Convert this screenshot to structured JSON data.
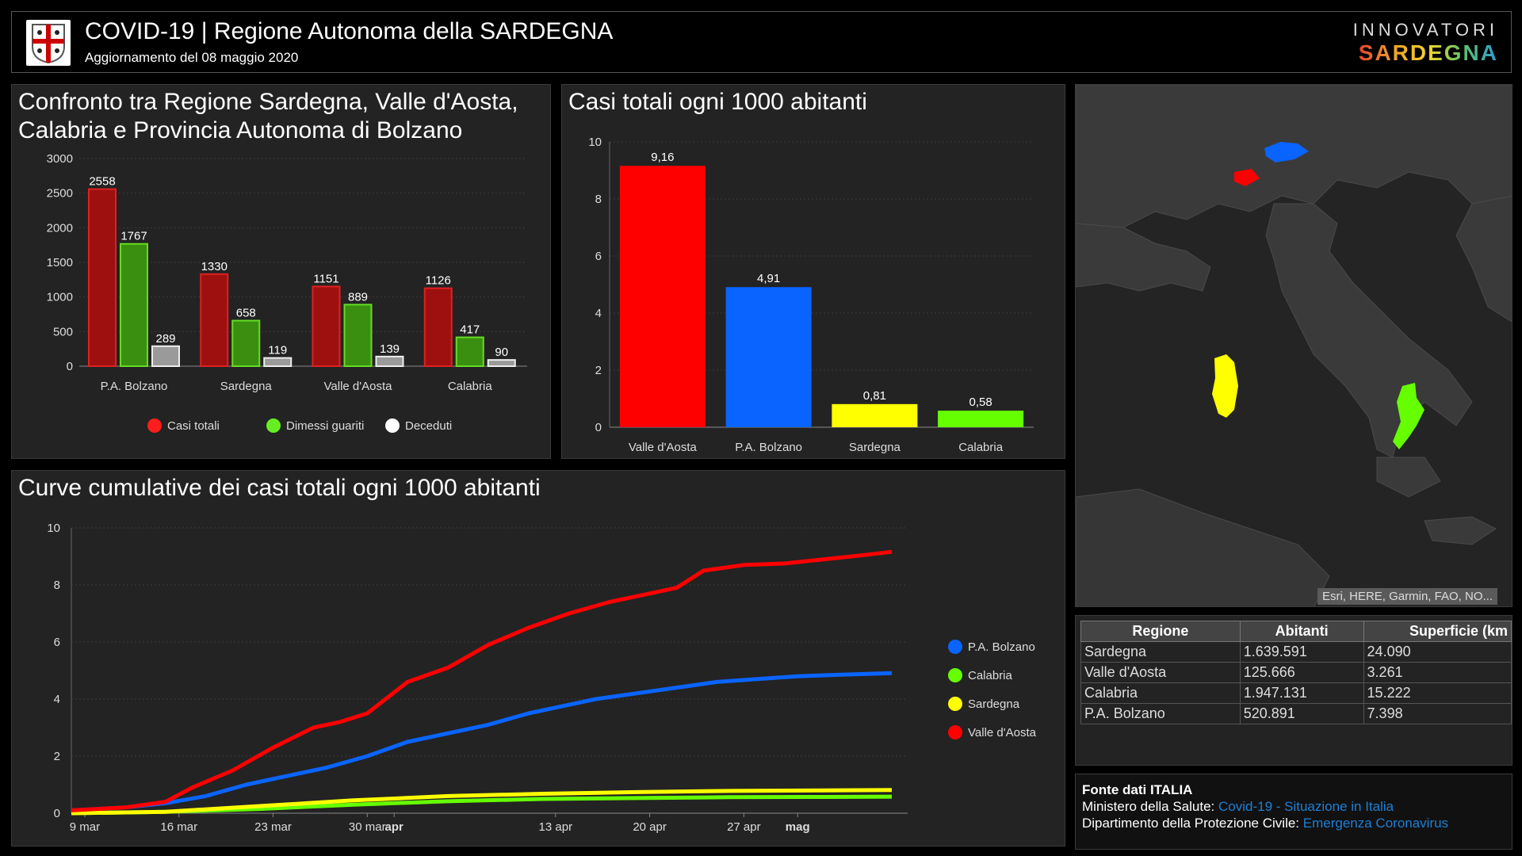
{
  "header": {
    "title": "COVID-19 | Regione Autonoma della SARDEGNA",
    "subtitle": "Aggiornamento del 08 maggio 2020",
    "brand_line1": "INNOVATORI",
    "brand_line2": "SARDEGNA"
  },
  "panels": {
    "compare_title": "Confronto tra Regione Sardegna, Valle d'Aosta, Calabria e Provincia Autonoma di Bolzano",
    "per1000_title": "Casi totali ogni 1000 abitanti",
    "curves_title": "Curve cumulative dei casi totali ogni 1000 abitanti"
  },
  "colors": {
    "casi": "#9e1010",
    "casi_border": "#e02020",
    "dimessi": "#3a8f10",
    "dimessi_border": "#66dd22",
    "deceduti": "#9a9a9a",
    "valle": "#ff0000",
    "bolzano": "#0a64ff",
    "sardegna": "#ffff00",
    "calabria": "#66ff00"
  },
  "chart_data": [
    {
      "type": "bar",
      "title": "Confronto tra Regione Sardegna, Valle d'Aosta, Calabria e Provincia Autonoma di Bolzano",
      "categories": [
        "P.A. Bolzano",
        "Sardegna",
        "Valle d'Aosta",
        "Calabria"
      ],
      "series": [
        {
          "name": "Casi totali",
          "values": [
            2558,
            1330,
            1151,
            1126
          ]
        },
        {
          "name": "Dimessi guariti",
          "values": [
            1767,
            658,
            889,
            417
          ]
        },
        {
          "name": "Deceduti",
          "values": [
            289,
            119,
            139,
            90
          ]
        }
      ],
      "yticks": [
        "0",
        "500",
        "1000",
        "1500",
        "2000",
        "2500",
        "3000"
      ],
      "ylim": [
        0,
        3000
      ],
      "legend": "bottom"
    },
    {
      "type": "bar",
      "title": "Casi totali ogni 1000 abitanti",
      "categories": [
        "Valle d'Aosta",
        "P.A. Bolzano",
        "Sardegna",
        "Calabria"
      ],
      "values": [
        9.16,
        4.91,
        0.81,
        0.58
      ],
      "labels": [
        "9,16",
        "4,91",
        "0,81",
        "0,58"
      ],
      "yticks": [
        "0",
        "2",
        "4",
        "6",
        "8",
        "10"
      ],
      "ylim": [
        0,
        10
      ]
    },
    {
      "type": "line",
      "title": "Curve cumulative dei casi totali ogni 1000 abitanti",
      "x_start": "2020-03-08",
      "x_end": "2020-05-08",
      "xticks": [
        {
          "date": "2020-03-09",
          "label": "9 mar"
        },
        {
          "date": "2020-03-16",
          "label": "16 mar"
        },
        {
          "date": "2020-03-23",
          "label": "23 mar"
        },
        {
          "date": "2020-03-30",
          "label": "30 mar"
        },
        {
          "date": "2020-04-01",
          "label": "apr"
        },
        {
          "date": "2020-04-13",
          "label": "13 apr"
        },
        {
          "date": "2020-04-20",
          "label": "20 apr"
        },
        {
          "date": "2020-04-27",
          "label": "27 apr"
        },
        {
          "date": "2020-05-01",
          "label": "mag"
        }
      ],
      "yticks": [
        "0",
        "2",
        "4",
        "6",
        "8",
        "10"
      ],
      "ylim": [
        0,
        10
      ],
      "legend": "right",
      "series": [
        {
          "name": "P.A. Bolzano",
          "points": [
            [
              "2020-03-08",
              0.1
            ],
            [
              "2020-03-12",
              0.2
            ],
            [
              "2020-03-15",
              0.35
            ],
            [
              "2020-03-18",
              0.6
            ],
            [
              "2020-03-21",
              1.0
            ],
            [
              "2020-03-24",
              1.3
            ],
            [
              "2020-03-27",
              1.6
            ],
            [
              "2020-03-30",
              2.0
            ],
            [
              "2020-04-02",
              2.5
            ],
            [
              "2020-04-05",
              2.8
            ],
            [
              "2020-04-08",
              3.1
            ],
            [
              "2020-04-11",
              3.5
            ],
            [
              "2020-04-14",
              3.8
            ],
            [
              "2020-04-16",
              4.0
            ],
            [
              "2020-04-19",
              4.2
            ],
            [
              "2020-04-22",
              4.4
            ],
            [
              "2020-04-25",
              4.6
            ],
            [
              "2020-04-28",
              4.7
            ],
            [
              "2020-05-01",
              4.8
            ],
            [
              "2020-05-04",
              4.85
            ],
            [
              "2020-05-08",
              4.91
            ]
          ]
        },
        {
          "name": "Calabria",
          "points": [
            [
              "2020-03-08",
              0.0
            ],
            [
              "2020-03-15",
              0.05
            ],
            [
              "2020-03-22",
              0.15
            ],
            [
              "2020-03-29",
              0.3
            ],
            [
              "2020-04-05",
              0.42
            ],
            [
              "2020-04-12",
              0.5
            ],
            [
              "2020-04-19",
              0.53
            ],
            [
              "2020-04-26",
              0.56
            ],
            [
              "2020-05-03",
              0.57
            ],
            [
              "2020-05-08",
              0.58
            ]
          ]
        },
        {
          "name": "Sardegna",
          "points": [
            [
              "2020-03-08",
              0.0
            ],
            [
              "2020-03-15",
              0.05
            ],
            [
              "2020-03-22",
              0.25
            ],
            [
              "2020-03-29",
              0.45
            ],
            [
              "2020-04-05",
              0.6
            ],
            [
              "2020-04-12",
              0.68
            ],
            [
              "2020-04-19",
              0.74
            ],
            [
              "2020-04-26",
              0.78
            ],
            [
              "2020-05-03",
              0.8
            ],
            [
              "2020-05-08",
              0.81
            ]
          ]
        },
        {
          "name": "Valle d'Aosta",
          "points": [
            [
              "2020-03-08",
              0.1
            ],
            [
              "2020-03-12",
              0.2
            ],
            [
              "2020-03-15",
              0.4
            ],
            [
              "2020-03-17",
              0.9
            ],
            [
              "2020-03-20",
              1.5
            ],
            [
              "2020-03-23",
              2.3
            ],
            [
              "2020-03-26",
              3.0
            ],
            [
              "2020-03-28",
              3.2
            ],
            [
              "2020-03-30",
              3.5
            ],
            [
              "2020-04-02",
              4.6
            ],
            [
              "2020-04-05",
              5.1
            ],
            [
              "2020-04-08",
              5.9
            ],
            [
              "2020-04-11",
              6.5
            ],
            [
              "2020-04-14",
              7.0
            ],
            [
              "2020-04-17",
              7.4
            ],
            [
              "2020-04-20",
              7.7
            ],
            [
              "2020-04-22",
              7.9
            ],
            [
              "2020-04-24",
              8.5
            ],
            [
              "2020-04-27",
              8.7
            ],
            [
              "2020-04-30",
              8.75
            ],
            [
              "2020-05-03",
              8.9
            ],
            [
              "2020-05-06",
              9.05
            ],
            [
              "2020-05-08",
              9.16
            ]
          ]
        }
      ]
    }
  ],
  "map": {
    "attribution": "Esri, HERE, Garmin, FAO, NO..."
  },
  "table": {
    "headers": [
      "Regione",
      "Abitanti",
      "Superficie (km"
    ],
    "rows": [
      [
        "Sardegna",
        "1.639.591",
        "24.090"
      ],
      [
        "Valle d'Aosta",
        "125.666",
        "3.261"
      ],
      [
        "Calabria",
        "1.947.131",
        "15.222"
      ],
      [
        "P.A. Bolzano",
        "520.891",
        "7.398"
      ]
    ]
  },
  "source": {
    "heading": "Fonte dati ITALIA",
    "line1_prefix": "Ministero della Salute:",
    "line1_link": "Covid-19 - Situazione in Italia",
    "line2_prefix": "Dipartimento della Protezione Civile:",
    "line2_link": "Emergenza Coronavirus"
  }
}
